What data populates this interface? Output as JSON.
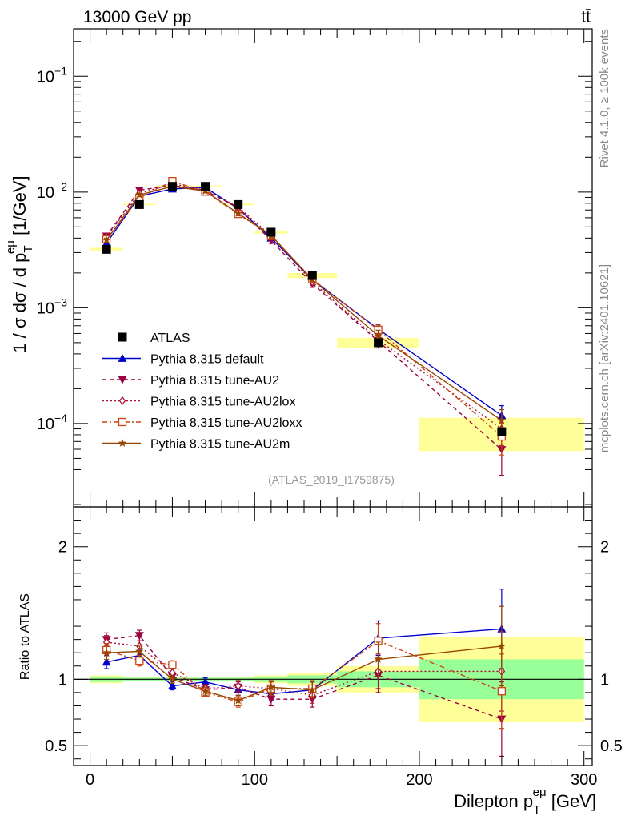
{
  "chart_data": {
    "type": "line",
    "header": {
      "energy": "13000 GeV pp",
      "process": "tt̄"
    },
    "side_labels": {
      "rivet": "Rivet 4.1.0, ≥ 100k events",
      "mcplots": "mcplots.cern.ch [arXiv:2401.10621]"
    },
    "analysis_id": "(ATLAS_2019_I1759875)",
    "xlabel": {
      "main": "Dilepton p",
      "sub": "T",
      "sup": "eμ",
      "unit": " [GeV]"
    },
    "ylabel_main": {
      "pre": "1 / σ  dσ / d p",
      "sub": "T",
      "sup": "eμ",
      "unit": " [1/GeV]"
    },
    "ylabel_ratio": "Ratio to ATLAS",
    "xlim": [
      -10,
      305
    ],
    "ylim_main_log10": [
      -4.72,
      -0.59
    ],
    "ylim_ratio": [
      0.35,
      2.3
    ],
    "x_ticks": [
      0,
      100,
      200,
      300
    ],
    "main_tick_labels": [
      {
        "base": "10",
        "exp": "−1",
        "v": -1
      },
      {
        "base": "10",
        "exp": "−2",
        "v": -2
      },
      {
        "base": "10",
        "exp": "−3",
        "v": -3
      },
      {
        "base": "10",
        "exp": "−4",
        "v": -4
      }
    ],
    "ratio_ticks": [
      0.5,
      1,
      2
    ],
    "x": [
      10,
      30,
      50,
      70,
      90,
      110,
      135,
      175,
      250
    ],
    "bin_edges": [
      0,
      20,
      40,
      60,
      80,
      100,
      120,
      150,
      200,
      300
    ],
    "data": {
      "name": "ATLAS",
      "values": [
        0.0032,
        0.0078,
        0.0112,
        0.0112,
        0.0078,
        0.0045,
        0.0019,
        0.0005,
        8.5e-05
      ],
      "band_inner": [
        0.02,
        0.012,
        0.012,
        0.012,
        0.012,
        0.02,
        0.03,
        0.06,
        0.15
      ],
      "band_outer": [
        0.03,
        0.016,
        0.016,
        0.016,
        0.017,
        0.03,
        0.05,
        0.1,
        0.32
      ]
    },
    "series": [
      {
        "name": "Pythia 8.315 default",
        "color": "#0000cc",
        "dash": "",
        "marker": "triangle-up",
        "ratio": [
          1.13,
          1.18,
          0.95,
          0.98,
          0.92,
          0.89,
          0.92,
          1.31,
          1.38
        ],
        "ratio_err": [
          0.05,
          0.04,
          0.03,
          0.03,
          0.04,
          0.05,
          0.06,
          0.13,
          0.3
        ]
      },
      {
        "name": "Pythia 8.315 tune-AU2",
        "color": "#990044",
        "dash": "5,4",
        "marker": "triangle-down",
        "ratio": [
          1.3,
          1.33,
          1.02,
          0.92,
          0.94,
          0.85,
          0.85,
          1.03,
          0.7
        ],
        "ratio_err": [
          0.05,
          0.04,
          0.03,
          0.03,
          0.04,
          0.05,
          0.06,
          0.13,
          0.28
        ]
      },
      {
        "name": "Pythia 8.315 tune-AU2lox",
        "color": "#aa1133",
        "dash": "2,3",
        "marker": "diamond",
        "ratio": [
          1.28,
          1.25,
          1.05,
          0.93,
          0.95,
          0.93,
          0.88,
          1.06,
          1.06
        ],
        "ratio_err": [
          0.05,
          0.04,
          0.03,
          0.03,
          0.04,
          0.05,
          0.06,
          0.13,
          0.3
        ]
      },
      {
        "name": "Pythia 8.315 tune-AU2loxx",
        "color": "#cc4411",
        "dash": "6,3,2,3",
        "marker": "square-open",
        "ratio": [
          1.22,
          1.14,
          1.11,
          0.9,
          0.83,
          0.93,
          0.93,
          1.29,
          0.91
        ],
        "ratio_err": [
          0.05,
          0.04,
          0.03,
          0.03,
          0.04,
          0.05,
          0.06,
          0.13,
          0.28
        ]
      },
      {
        "name": "Pythia 8.315 tune-AU2m",
        "color": "#994400",
        "dash": "",
        "marker": "star",
        "ratio": [
          1.2,
          1.21,
          1.0,
          0.91,
          0.84,
          0.94,
          0.92,
          1.15,
          1.25
        ],
        "ratio_err": [
          0.05,
          0.04,
          0.03,
          0.03,
          0.04,
          0.05,
          0.06,
          0.13,
          0.3
        ]
      }
    ]
  }
}
